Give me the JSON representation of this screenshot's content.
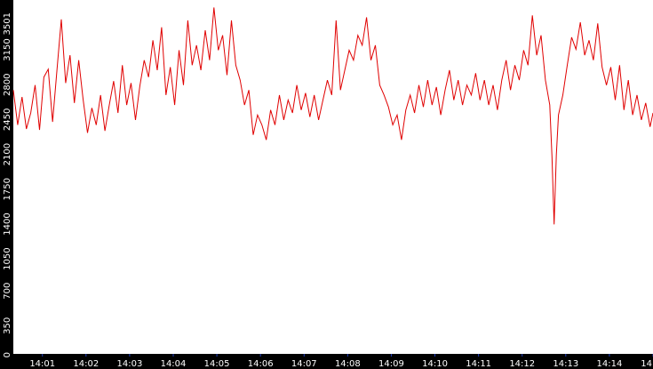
{
  "chart_data": {
    "type": "line",
    "title": "",
    "xlabel": "",
    "ylabel": "",
    "grid": false,
    "legend": "none",
    "colors": {
      "line": "#e00000",
      "background": "#ffffff",
      "axis_bar": "#000000",
      "axis_text": "#ffffff",
      "tick_mark": "#1f3fbf"
    },
    "xlim": [
      "14:00:20",
      "14:15:00"
    ],
    "ylim": [
      0,
      3501
    ],
    "x_ticks": [
      "14:01",
      "14:02",
      "14:03",
      "14:04",
      "14:05",
      "14:06",
      "14:07",
      "14:08",
      "14:09",
      "14:10",
      "14:11",
      "14:12",
      "14:13",
      "14:14",
      "14"
    ],
    "y_ticks": [
      "0",
      "350",
      "700",
      "1050",
      "1400",
      "1750",
      "2100",
      "2450",
      "2800",
      "3150",
      "3501"
    ],
    "series": [
      {
        "values": [
          {
            "x": "14:00:20",
            "y": 2650
          },
          {
            "x": "14:00:26",
            "y": 2300
          },
          {
            "x": "14:00:32",
            "y": 2580
          },
          {
            "x": "14:00:38",
            "y": 2260
          },
          {
            "x": "14:00:44",
            "y": 2420
          },
          {
            "x": "14:00:50",
            "y": 2700
          },
          {
            "x": "14:00:56",
            "y": 2250
          },
          {
            "x": "14:01:02",
            "y": 2780
          },
          {
            "x": "14:01:08",
            "y": 2860
          },
          {
            "x": "14:01:14",
            "y": 2330
          },
          {
            "x": "14:01:20",
            "y": 2850
          },
          {
            "x": "14:01:26",
            "y": 3360
          },
          {
            "x": "14:01:32",
            "y": 2720
          },
          {
            "x": "14:01:38",
            "y": 3000
          },
          {
            "x": "14:01:44",
            "y": 2520
          },
          {
            "x": "14:01:50",
            "y": 2950
          },
          {
            "x": "14:01:56",
            "y": 2560
          },
          {
            "x": "14:02:02",
            "y": 2220
          },
          {
            "x": "14:02:08",
            "y": 2470
          },
          {
            "x": "14:02:14",
            "y": 2300
          },
          {
            "x": "14:02:20",
            "y": 2600
          },
          {
            "x": "14:02:26",
            "y": 2240
          },
          {
            "x": "14:02:32",
            "y": 2500
          },
          {
            "x": "14:02:38",
            "y": 2740
          },
          {
            "x": "14:02:44",
            "y": 2420
          },
          {
            "x": "14:02:50",
            "y": 2900
          },
          {
            "x": "14:02:56",
            "y": 2500
          },
          {
            "x": "14:03:02",
            "y": 2720
          },
          {
            "x": "14:03:08",
            "y": 2350
          },
          {
            "x": "14:03:14",
            "y": 2690
          },
          {
            "x": "14:03:20",
            "y": 2950
          },
          {
            "x": "14:03:26",
            "y": 2780
          },
          {
            "x": "14:03:32",
            "y": 3150
          },
          {
            "x": "14:03:38",
            "y": 2850
          },
          {
            "x": "14:03:44",
            "y": 3280
          },
          {
            "x": "14:03:50",
            "y": 2600
          },
          {
            "x": "14:03:56",
            "y": 2880
          },
          {
            "x": "14:04:02",
            "y": 2500
          },
          {
            "x": "14:04:08",
            "y": 3050
          },
          {
            "x": "14:04:14",
            "y": 2700
          },
          {
            "x": "14:04:20",
            "y": 3350
          },
          {
            "x": "14:04:26",
            "y": 2900
          },
          {
            "x": "14:04:32",
            "y": 3100
          },
          {
            "x": "14:04:38",
            "y": 2850
          },
          {
            "x": "14:04:44",
            "y": 3250
          },
          {
            "x": "14:04:50",
            "y": 2950
          },
          {
            "x": "14:04:56",
            "y": 3480
          },
          {
            "x": "14:05:02",
            "y": 3050
          },
          {
            "x": "14:05:08",
            "y": 3200
          },
          {
            "x": "14:05:14",
            "y": 2800
          },
          {
            "x": "14:05:20",
            "y": 3350
          },
          {
            "x": "14:05:26",
            "y": 2900
          },
          {
            "x": "14:05:32",
            "y": 2750
          },
          {
            "x": "14:05:38",
            "y": 2500
          },
          {
            "x": "14:05:44",
            "y": 2650
          },
          {
            "x": "14:05:50",
            "y": 2200
          },
          {
            "x": "14:05:56",
            "y": 2400
          },
          {
            "x": "14:06:02",
            "y": 2300
          },
          {
            "x": "14:06:08",
            "y": 2150
          },
          {
            "x": "14:06:14",
            "y": 2450
          },
          {
            "x": "14:06:20",
            "y": 2300
          },
          {
            "x": "14:06:26",
            "y": 2600
          },
          {
            "x": "14:06:32",
            "y": 2350
          },
          {
            "x": "14:06:38",
            "y": 2550
          },
          {
            "x": "14:06:44",
            "y": 2420
          },
          {
            "x": "14:06:50",
            "y": 2700
          },
          {
            "x": "14:06:56",
            "y": 2450
          },
          {
            "x": "14:07:02",
            "y": 2620
          },
          {
            "x": "14:07:08",
            "y": 2380
          },
          {
            "x": "14:07:14",
            "y": 2600
          },
          {
            "x": "14:07:20",
            "y": 2350
          },
          {
            "x": "14:07:26",
            "y": 2550
          },
          {
            "x": "14:07:32",
            "y": 2750
          },
          {
            "x": "14:07:38",
            "y": 2600
          },
          {
            "x": "14:07:44",
            "y": 3350
          },
          {
            "x": "14:07:50",
            "y": 2650
          },
          {
            "x": "14:07:56",
            "y": 2850
          },
          {
            "x": "14:08:02",
            "y": 3050
          },
          {
            "x": "14:08:08",
            "y": 2950
          },
          {
            "x": "14:08:14",
            "y": 3200
          },
          {
            "x": "14:08:20",
            "y": 3100
          },
          {
            "x": "14:08:26",
            "y": 3380
          },
          {
            "x": "14:08:32",
            "y": 2950
          },
          {
            "x": "14:08:38",
            "y": 3100
          },
          {
            "x": "14:08:44",
            "y": 2700
          },
          {
            "x": "14:08:50",
            "y": 2600
          },
          {
            "x": "14:08:56",
            "y": 2480
          },
          {
            "x": "14:09:02",
            "y": 2300
          },
          {
            "x": "14:09:08",
            "y": 2400
          },
          {
            "x": "14:09:14",
            "y": 2150
          },
          {
            "x": "14:09:20",
            "y": 2450
          },
          {
            "x": "14:09:26",
            "y": 2600
          },
          {
            "x": "14:09:32",
            "y": 2420
          },
          {
            "x": "14:09:38",
            "y": 2700
          },
          {
            "x": "14:09:44",
            "y": 2480
          },
          {
            "x": "14:09:50",
            "y": 2750
          },
          {
            "x": "14:09:56",
            "y": 2500
          },
          {
            "x": "14:10:02",
            "y": 2680
          },
          {
            "x": "14:10:08",
            "y": 2400
          },
          {
            "x": "14:10:14",
            "y": 2650
          },
          {
            "x": "14:10:20",
            "y": 2850
          },
          {
            "x": "14:10:26",
            "y": 2550
          },
          {
            "x": "14:10:32",
            "y": 2750
          },
          {
            "x": "14:10:38",
            "y": 2500
          },
          {
            "x": "14:10:44",
            "y": 2700
          },
          {
            "x": "14:10:50",
            "y": 2600
          },
          {
            "x": "14:10:56",
            "y": 2820
          },
          {
            "x": "14:11:02",
            "y": 2550
          },
          {
            "x": "14:11:08",
            "y": 2750
          },
          {
            "x": "14:11:14",
            "y": 2500
          },
          {
            "x": "14:11:20",
            "y": 2700
          },
          {
            "x": "14:11:26",
            "y": 2450
          },
          {
            "x": "14:11:32",
            "y": 2750
          },
          {
            "x": "14:11:38",
            "y": 2950
          },
          {
            "x": "14:11:44",
            "y": 2650
          },
          {
            "x": "14:11:50",
            "y": 2900
          },
          {
            "x": "14:11:56",
            "y": 2750
          },
          {
            "x": "14:12:02",
            "y": 3050
          },
          {
            "x": "14:12:08",
            "y": 2900
          },
          {
            "x": "14:12:14",
            "y": 3400
          },
          {
            "x": "14:12:20",
            "y": 3000
          },
          {
            "x": "14:12:26",
            "y": 3200
          },
          {
            "x": "14:12:32",
            "y": 2750
          },
          {
            "x": "14:12:38",
            "y": 2500
          },
          {
            "x": "14:12:41",
            "y": 1980
          },
          {
            "x": "14:12:44",
            "y": 1300
          },
          {
            "x": "14:12:47",
            "y": 2000
          },
          {
            "x": "14:12:50",
            "y": 2400
          },
          {
            "x": "14:12:56",
            "y": 2600
          },
          {
            "x": "14:13:02",
            "y": 2900
          },
          {
            "x": "14:13:08",
            "y": 3180
          },
          {
            "x": "14:13:14",
            "y": 3060
          },
          {
            "x": "14:13:20",
            "y": 3330
          },
          {
            "x": "14:13:26",
            "y": 3000
          },
          {
            "x": "14:13:32",
            "y": 3150
          },
          {
            "x": "14:13:38",
            "y": 2950
          },
          {
            "x": "14:13:44",
            "y": 3320
          },
          {
            "x": "14:13:50",
            "y": 2880
          },
          {
            "x": "14:13:56",
            "y": 2700
          },
          {
            "x": "14:14:02",
            "y": 2880
          },
          {
            "x": "14:14:08",
            "y": 2550
          },
          {
            "x": "14:14:14",
            "y": 2900
          },
          {
            "x": "14:14:20",
            "y": 2450
          },
          {
            "x": "14:14:26",
            "y": 2750
          },
          {
            "x": "14:14:32",
            "y": 2400
          },
          {
            "x": "14:14:38",
            "y": 2600
          },
          {
            "x": "14:14:44",
            "y": 2350
          },
          {
            "x": "14:14:50",
            "y": 2520
          },
          {
            "x": "14:14:56",
            "y": 2280
          },
          {
            "x": "14:15:00",
            "y": 2420
          }
        ]
      }
    ]
  }
}
